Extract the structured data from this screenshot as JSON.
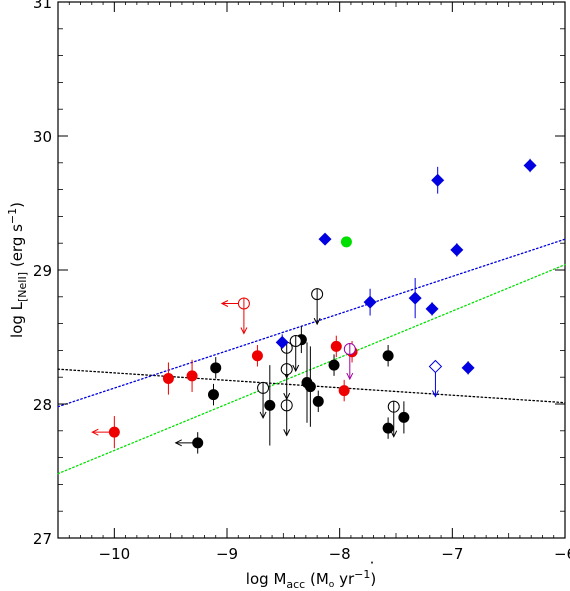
{
  "chart_data": {
    "type": "scatter",
    "title": "",
    "xlabel": "log Ṁacc (M⊙ yr⁻¹)",
    "ylabel": "log L[NeII] (erg s⁻¹)",
    "xlim": [
      -10.5,
      -6
    ],
    "ylim": [
      27,
      31
    ],
    "xticks": [
      -10,
      -9,
      -8,
      -7,
      -6
    ],
    "yticks": [
      27,
      28,
      29,
      30,
      31
    ],
    "xtick_labels": [
      "−10",
      "−9",
      "−8",
      "−7",
      "−6"
    ],
    "ytick_labels": [
      "27",
      "28",
      "29",
      "30",
      "31"
    ],
    "grid": false,
    "colors": {
      "black": "#000000",
      "red": "#ee0000",
      "blue": "#0000e0",
      "green": "#00e000",
      "purple": "#a000a0"
    },
    "lines": [
      {
        "style": "dotted",
        "color": "#000000",
        "points": [
          [
            -10.5,
            28.26
          ],
          [
            -6,
            28.01
          ]
        ]
      },
      {
        "style": "dotted",
        "color": "#0000e0",
        "points": [
          [
            -10.5,
            27.98
          ],
          [
            -6,
            29.23
          ]
        ]
      },
      {
        "style": "dotted",
        "color": "#00e000",
        "points": [
          [
            -10.5,
            27.48
          ],
          [
            -6,
            29.04
          ]
        ]
      }
    ],
    "series": [
      {
        "marker": "circle-filled",
        "color": "#000000",
        "points": [
          {
            "x": -9.1,
            "y": 28.27,
            "err": 0.08
          },
          {
            "x": -9.12,
            "y": 28.07,
            "err": 0.08
          },
          {
            "x": -9.26,
            "y": 27.71,
            "err": 0.08
          },
          {
            "x": -8.62,
            "y": 27.99,
            "err": 0.3
          },
          {
            "x": -8.34,
            "y": 28.48,
            "err": 0.1
          },
          {
            "x": -8.29,
            "y": 28.16,
            "err": 0.3
          },
          {
            "x": -8.26,
            "y": 28.13,
            "err": 0.3
          },
          {
            "x": -8.19,
            "y": 28.02,
            "err": 0.08
          },
          {
            "x": -8.05,
            "y": 28.29,
            "err": 0.08
          },
          {
            "x": -7.57,
            "y": 28.36,
            "err": 0.08
          },
          {
            "x": -7.57,
            "y": 27.82,
            "err": 0.08
          },
          {
            "x": -7.43,
            "y": 27.9,
            "err": 0.12
          }
        ]
      },
      {
        "marker": "circle-open",
        "color": "#000000",
        "points": [
          {
            "x": -8.68,
            "y": 28.12
          },
          {
            "x": -8.47,
            "y": 28.26
          },
          {
            "x": -8.47,
            "y": 28.42
          },
          {
            "x": -8.47,
            "y": 27.99
          },
          {
            "x": -8.39,
            "y": 28.47
          },
          {
            "x": -8.2,
            "y": 28.82
          },
          {
            "x": -7.52,
            "y": 27.98
          }
        ]
      },
      {
        "marker": "circle-filled",
        "color": "#ee0000",
        "points": [
          {
            "x": -10.0,
            "y": 27.79,
            "err": 0.12
          },
          {
            "x": -9.52,
            "y": 28.19,
            "err": 0.12
          },
          {
            "x": -9.31,
            "y": 28.21,
            "err": 0.12
          },
          {
            "x": -8.73,
            "y": 28.36,
            "err": 0.08
          },
          {
            "x": -8.03,
            "y": 28.43,
            "err": 0.08
          },
          {
            "x": -7.96,
            "y": 28.1,
            "err": 0.08
          },
          {
            "x": -7.89,
            "y": 28.39,
            "err": 0.08
          }
        ]
      },
      {
        "marker": "circle-open",
        "color": "#ee0000",
        "points": [
          {
            "x": -8.85,
            "y": 28.75
          }
        ]
      },
      {
        "marker": "circle-filled",
        "color": "#00e000",
        "points": [
          {
            "x": -7.94,
            "y": 29.21
          }
        ]
      },
      {
        "marker": "diamond-filled",
        "color": "#0000e0",
        "points": [
          {
            "x": -8.51,
            "y": 28.46,
            "err": 0.06
          },
          {
            "x": -8.13,
            "y": 29.23,
            "err": 0.04
          },
          {
            "x": -7.73,
            "y": 28.76,
            "err": 0.1
          },
          {
            "x": -7.33,
            "y": 28.79,
            "err": 0.15
          },
          {
            "x": -7.18,
            "y": 28.71,
            "err": 0.05
          },
          {
            "x": -7.13,
            "y": 29.67,
            "err": 0.1
          },
          {
            "x": -6.96,
            "y": 29.15,
            "err": 0.05
          },
          {
            "x": -6.86,
            "y": 28.27,
            "err": 0.05
          },
          {
            "x": -6.31,
            "y": 29.78,
            "err": 0.05
          }
        ]
      },
      {
        "marker": "diamond-open",
        "color": "#0000e0",
        "points": [
          {
            "x": -7.15,
            "y": 28.28
          }
        ]
      },
      {
        "marker": "circle-open",
        "color": "#a000a0",
        "points": [
          {
            "x": -7.91,
            "y": 28.41
          }
        ]
      }
    ],
    "upper_limits_y": [
      {
        "x": -8.68,
        "y": 28.12,
        "color": "#000000"
      },
      {
        "x": -8.47,
        "y": 28.26,
        "color": "#000000"
      },
      {
        "x": -8.47,
        "y": 28.42,
        "color": "#000000"
      },
      {
        "x": -8.47,
        "y": 27.99,
        "color": "#000000"
      },
      {
        "x": -8.39,
        "y": 28.47,
        "color": "#000000"
      },
      {
        "x": -8.2,
        "y": 28.82,
        "color": "#000000"
      },
      {
        "x": -7.52,
        "y": 27.98,
        "color": "#000000"
      },
      {
        "x": -8.85,
        "y": 28.75,
        "color": "#ee0000"
      },
      {
        "x": -7.15,
        "y": 28.28,
        "color": "#0000e0"
      },
      {
        "x": -7.91,
        "y": 28.41,
        "color": "#a000a0"
      }
    ],
    "upper_limits_x": [
      {
        "x": -10.0,
        "y": 27.79,
        "color": "#ee0000"
      },
      {
        "x": -9.26,
        "y": 27.71,
        "color": "#000000"
      },
      {
        "x": -8.85,
        "y": 28.75,
        "color": "#ee0000"
      }
    ]
  }
}
